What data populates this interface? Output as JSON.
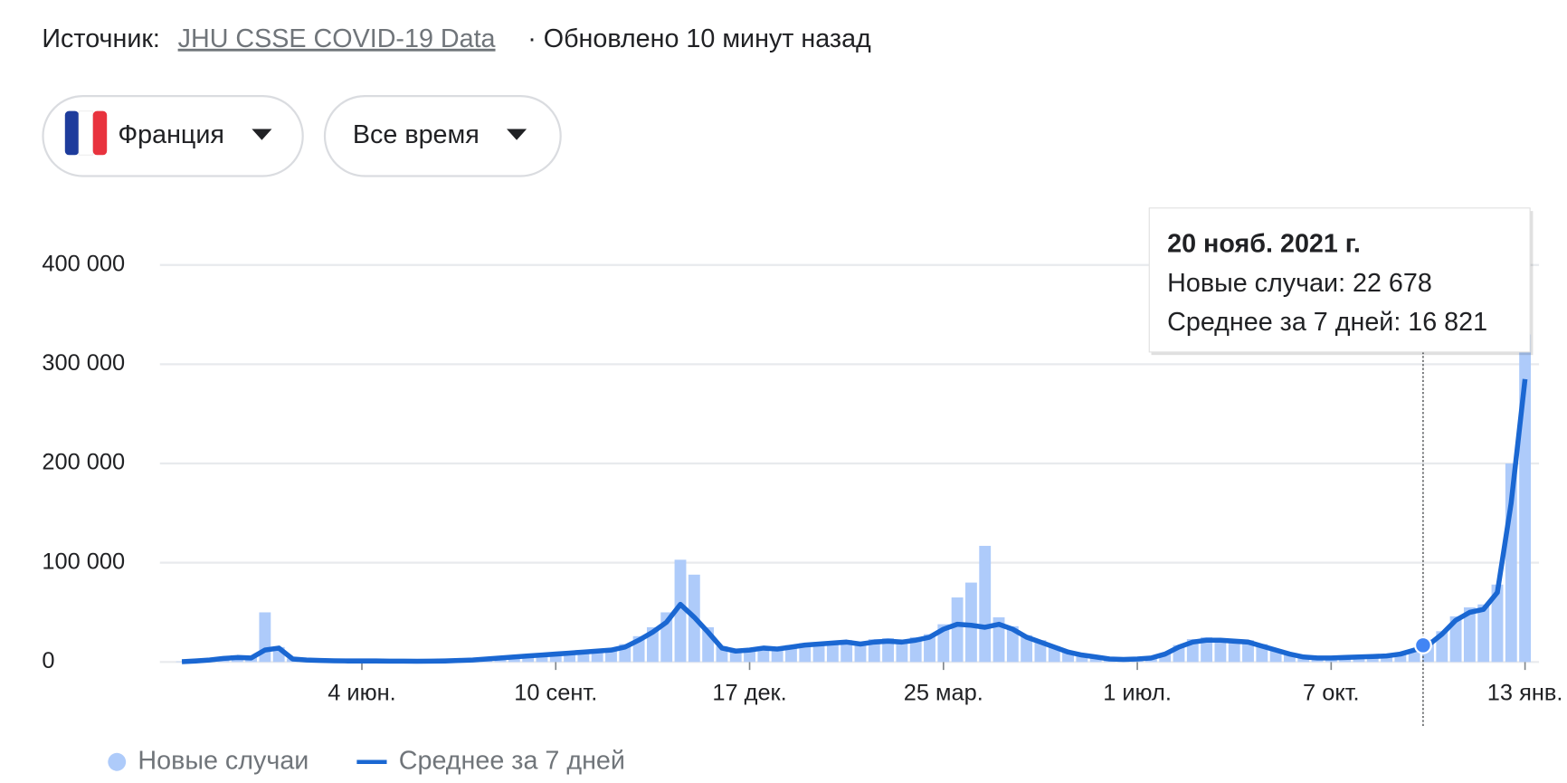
{
  "header": {
    "source_label": "Источник:",
    "source_link": "JHU CSSE COVID-19 Data",
    "updated": "· Обновлено 10 минут назад"
  },
  "filters": {
    "country": "Франция",
    "period": "Все время"
  },
  "tooltip": {
    "title": "20 нояб. 2021 г.",
    "labels": [
      "Новые случаи:",
      "Среднее за 7 дней:"
    ],
    "values": [
      22678,
      16821
    ],
    "value_labels": [
      "22 678",
      "16 821"
    ]
  },
  "chart_data": {
    "type": "bar-line",
    "categories": [
      null,
      null,
      null,
      null,
      null,
      null,
      null,
      null,
      null,
      null,
      null,
      null,
      null,
      "4 июн.",
      null,
      null,
      null,
      null,
      null,
      null,
      null,
      null,
      null,
      null,
      null,
      null,
      null,
      "10 сент.",
      null,
      null,
      null,
      null,
      null,
      null,
      null,
      null,
      null,
      null,
      null,
      null,
      null,
      "17 дек.",
      null,
      null,
      null,
      null,
      null,
      null,
      null,
      null,
      null,
      null,
      null,
      null,
      null,
      "25 мар.",
      null,
      null,
      null,
      null,
      null,
      null,
      null,
      null,
      null,
      null,
      null,
      null,
      null,
      "1 июл.",
      null,
      null,
      null,
      null,
      null,
      null,
      null,
      null,
      null,
      null,
      null,
      null,
      null,
      "7 окт.",
      null,
      null,
      null,
      null,
      null,
      null,
      null,
      null,
      null,
      null,
      null,
      null,
      null,
      "13 янв."
    ],
    "series": [
      {
        "name": "Новые случаи",
        "kind": "bar",
        "color": "#aecbfa",
        "values": [
          500,
          1200,
          2500,
          4000,
          5000,
          4500,
          50000,
          15000,
          3500,
          2200,
          1800,
          1300,
          1100,
          1200,
          1000,
          900,
          800,
          800,
          900,
          1200,
          1700,
          2300,
          3400,
          4500,
          5500,
          6500,
          7500,
          9000,
          10000,
          11000,
          12000,
          13500,
          18000,
          26000,
          35000,
          50000,
          103000,
          88000,
          35000,
          16000,
          12000,
          13500,
          15000,
          14000,
          17000,
          19000,
          20000,
          21000,
          22000,
          19000,
          23000,
          24000,
          22000,
          25000,
          28000,
          38000,
          65000,
          80000,
          117000,
          45000,
          36000,
          27000,
          22000,
          16000,
          11000,
          8000,
          5500,
          3500,
          3000,
          3300,
          4500,
          9000,
          17000,
          23000,
          25000,
          24000,
          23000,
          22000,
          18000,
          13000,
          9000,
          5500,
          4500,
          4300,
          5000,
          5500,
          6000,
          6500,
          9000,
          13000,
          22678,
          31000,
          46000,
          55000,
          58000,
          78000,
          200000,
          330000
        ]
      },
      {
        "name": "Среднее за 7 дней",
        "kind": "line",
        "color": "#1a67d2",
        "values": [
          300,
          1000,
          2000,
          3500,
          4500,
          4000,
          12000,
          14000,
          3000,
          2000,
          1500,
          1200,
          1000,
          1000,
          1000,
          800,
          800,
          700,
          800,
          1000,
          1500,
          2000,
          3000,
          4000,
          5000,
          6000,
          7000,
          8000,
          9000,
          10000,
          11000,
          12000,
          15000,
          22000,
          30000,
          40000,
          58000,
          45000,
          30000,
          14000,
          11000,
          12000,
          14000,
          13000,
          15000,
          17000,
          18000,
          19000,
          20000,
          18000,
          20000,
          21000,
          20000,
          22000,
          25000,
          33000,
          38000,
          37000,
          35000,
          38000,
          33000,
          25000,
          20000,
          15000,
          10000,
          7000,
          5000,
          3000,
          2500,
          3000,
          4000,
          8000,
          15000,
          20000,
          22000,
          22000,
          21000,
          20000,
          16000,
          12000,
          8000,
          5000,
          4000,
          4000,
          4500,
          5000,
          5500,
          6000,
          8000,
          12000,
          16821,
          28000,
          42000,
          50000,
          53000,
          70000,
          160000,
          285000
        ]
      }
    ],
    "ylim": [
      0,
      400000
    ],
    "yticks": [
      0,
      {
        "value": 100000,
        "label": "100 000"
      },
      {
        "value": 200000,
        "label": "200 000"
      },
      {
        "value": 300000,
        "label": "300 000"
      },
      {
        "value": 400000,
        "label": "400 000"
      }
    ],
    "grid": true
  }
}
